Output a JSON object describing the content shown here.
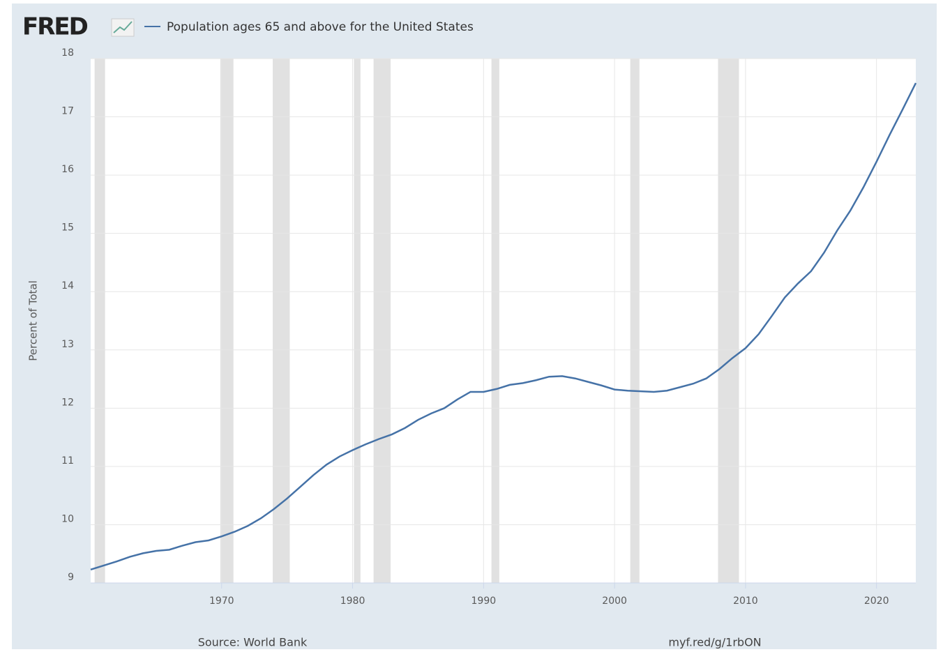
{
  "chart_data": {
    "type": "line",
    "logo": "FRED",
    "y_label": "Percent of Total",
    "source": "Source: World Bank",
    "link": "myf.red/g/1rbON",
    "x": [
      1960,
      1961,
      1962,
      1963,
      1964,
      1965,
      1966,
      1967,
      1968,
      1969,
      1970,
      1971,
      1972,
      1973,
      1974,
      1975,
      1976,
      1977,
      1978,
      1979,
      1980,
      1981,
      1982,
      1983,
      1984,
      1985,
      1986,
      1987,
      1988,
      1989,
      1990,
      1991,
      1992,
      1993,
      1994,
      1995,
      1996,
      1997,
      1998,
      1999,
      2000,
      2001,
      2002,
      2003,
      2004,
      2005,
      2006,
      2007,
      2008,
      2009,
      2010,
      2011,
      2012,
      2013,
      2014,
      2015,
      2016,
      2017,
      2018,
      2019,
      2020,
      2021,
      2022,
      2023
    ],
    "series": [
      {
        "name": "Population ages 65 and above for the United States",
        "color": "#4572a7",
        "values": [
          9.23,
          9.3,
          9.37,
          9.45,
          9.51,
          9.55,
          9.57,
          9.64,
          9.7,
          9.73,
          9.8,
          9.88,
          9.98,
          10.11,
          10.27,
          10.45,
          10.65,
          10.85,
          11.03,
          11.17,
          11.28,
          11.38,
          11.47,
          11.55,
          11.66,
          11.8,
          11.91,
          12.0,
          12.15,
          12.28,
          12.28,
          12.33,
          12.4,
          12.43,
          12.48,
          12.54,
          12.55,
          12.51,
          12.45,
          12.39,
          12.32,
          12.3,
          12.29,
          12.28,
          12.3,
          12.36,
          12.42,
          12.51,
          12.67,
          12.86,
          13.03,
          13.27,
          13.58,
          13.9,
          14.14,
          14.35,
          14.67,
          15.05,
          15.39,
          15.79,
          16.23,
          16.69,
          17.13,
          17.58
        ]
      }
    ],
    "recessions": [
      [
        1960.3,
        1961.1
      ],
      [
        1969.9,
        1970.9
      ],
      [
        1973.9,
        1975.2
      ],
      [
        1980.1,
        1980.6
      ],
      [
        1981.6,
        1982.9
      ],
      [
        1990.6,
        1991.2
      ],
      [
        2001.2,
        2001.9
      ],
      [
        2007.9,
        2009.5
      ]
    ],
    "recession_color": "#e1e1e1",
    "xlim": [
      1960,
      2023
    ],
    "xticks": [
      1970,
      1980,
      1990,
      2000,
      2010,
      2020
    ],
    "ylim": [
      9,
      18
    ],
    "yticks": [
      9,
      10,
      11,
      12,
      13,
      14,
      15,
      16,
      17,
      18
    ],
    "grid": true
  }
}
